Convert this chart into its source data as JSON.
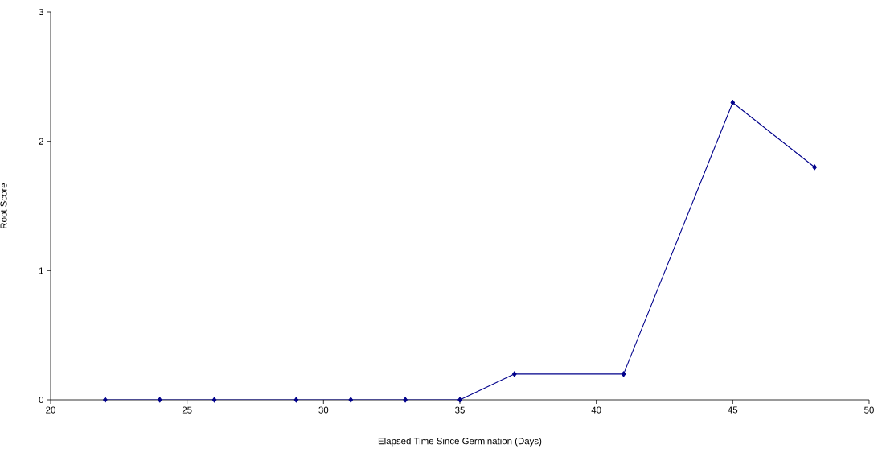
{
  "chart_data": {
    "type": "line",
    "xlabel": "Elapsed Time Since Germination (Days)",
    "ylabel": "Root Score",
    "x": [
      22,
      24,
      26,
      29,
      31,
      33,
      35,
      37,
      41,
      45,
      48
    ],
    "series": [
      {
        "color": "#00008b",
        "values": [
          0,
          0,
          0,
          0,
          0,
          0,
          0,
          0.2,
          0.2,
          2.3,
          1.8
        ]
      }
    ],
    "xlim": [
      20,
      50
    ],
    "xticks": [
      20,
      25,
      30,
      35,
      40,
      45,
      50
    ],
    "ylim": [
      0,
      3
    ],
    "yticks": [
      0,
      1,
      2,
      3
    ],
    "marker": "diamond",
    "line_style": "solid",
    "grid": false
  }
}
